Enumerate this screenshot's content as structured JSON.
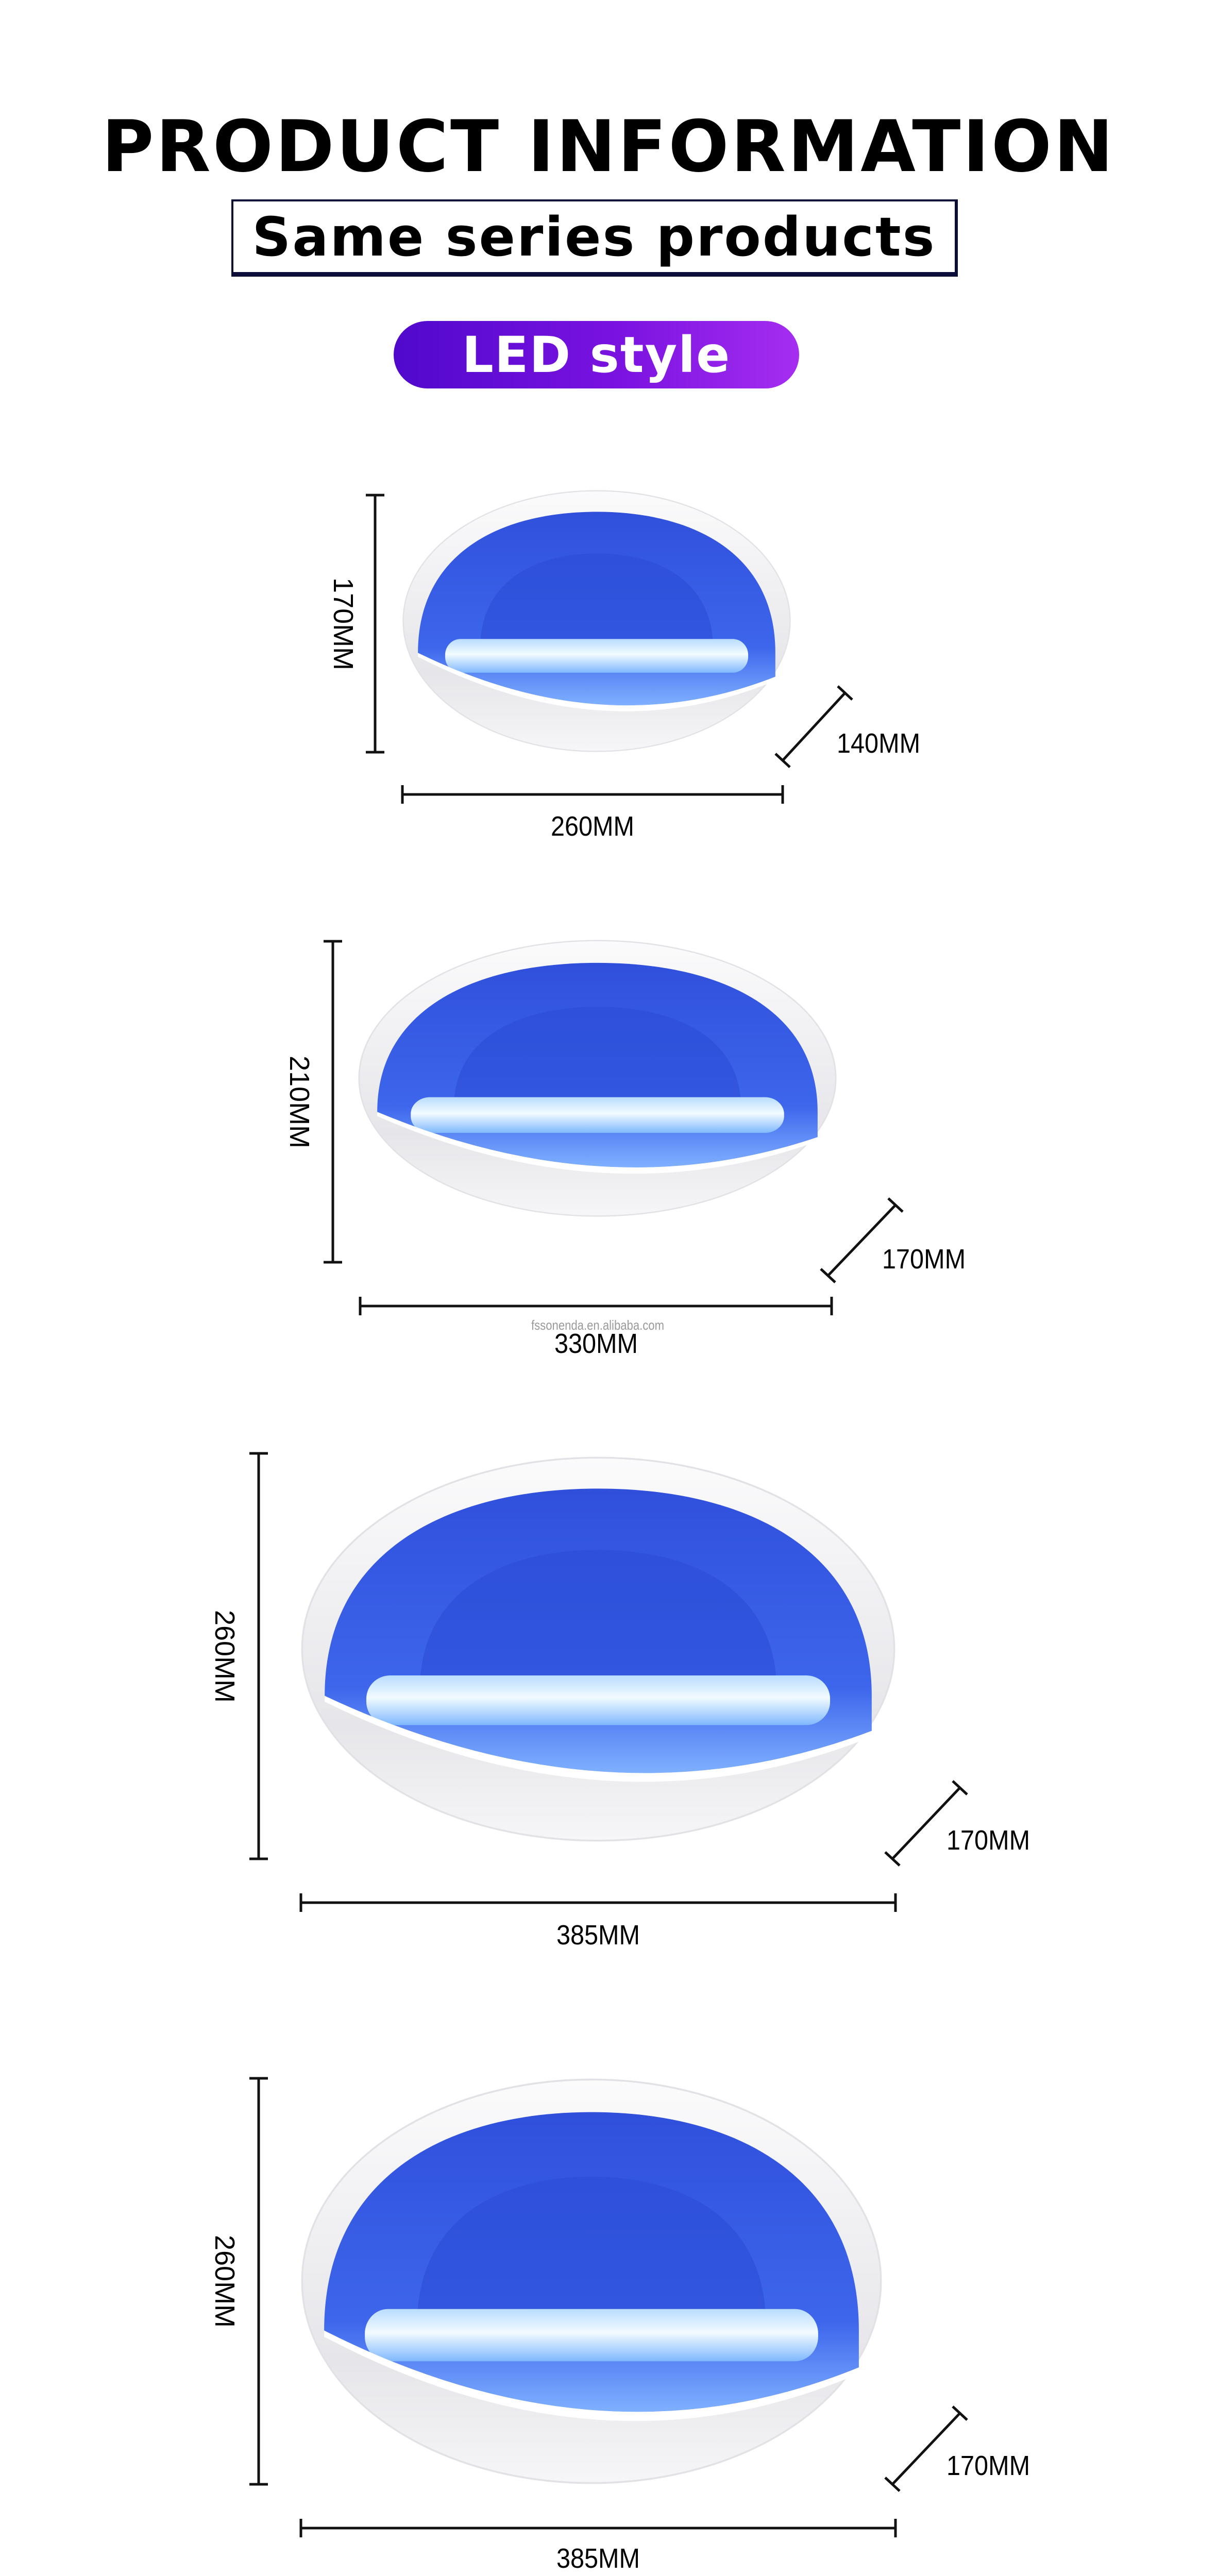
{
  "header": {
    "title": "PRODUCT INFORMATION",
    "subtitle": "Same series products",
    "style_badge": "LED style"
  },
  "colors": {
    "badge_gradient_start": "#5009cc",
    "badge_gradient_end": "#a52ef0",
    "led_blue": "#3a5ee8",
    "body_white": "#f4f4f6"
  },
  "watermark": "fssonenda.en.alibaba.com",
  "products": [
    {
      "height": "170MM",
      "width": "260MM",
      "depth": "140MM"
    },
    {
      "height": "210MM",
      "width": "330MM",
      "depth": "170MM"
    },
    {
      "height": "260MM",
      "width": "385MM",
      "depth": "170MM"
    },
    {
      "height": "260MM",
      "width": "385MM",
      "depth": "170MM"
    }
  ]
}
